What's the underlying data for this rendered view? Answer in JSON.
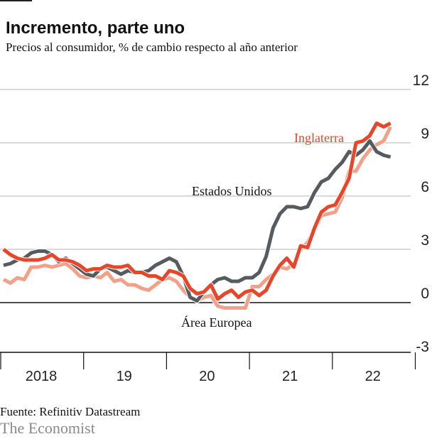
{
  "header": {
    "title": "Incremento, parte uno",
    "subtitle": "Precios al consumidor, % de cambio respecto al año anterior"
  },
  "footer": {
    "source": "Fuente: Refinitiv Datastream",
    "brand": "The Economist"
  },
  "chart_data": {
    "type": "line",
    "x_start": "2018-01",
    "x_end": "2022-09",
    "x_frequency": "monthly",
    "x_tick_labels": [
      "2018",
      "19",
      "20",
      "21",
      "22"
    ],
    "y_ticks": [
      -3,
      0,
      3,
      6,
      9,
      12
    ],
    "ylim": [
      -3,
      12
    ],
    "grid": true,
    "series": [
      {
        "name": "Estados Unidos",
        "color": "#565b60",
        "values": [
          2.1,
          2.2,
          2.4,
          2.5,
          2.8,
          2.9,
          2.9,
          2.7,
          2.3,
          2.5,
          2.2,
          1.9,
          1.6,
          1.5,
          1.9,
          2.0,
          1.8,
          1.6,
          1.8,
          1.7,
          1.7,
          1.8,
          2.1,
          2.3,
          2.5,
          2.3,
          1.5,
          0.3,
          0.1,
          0.6,
          1.0,
          1.3,
          1.4,
          1.2,
          1.2,
          1.4,
          1.4,
          1.7,
          2.6,
          4.2,
          5.0,
          5.4,
          5.4,
          5.3,
          5.4,
          6.2,
          6.8,
          7.0,
          7.5,
          7.9,
          8.5,
          8.3,
          8.6,
          9.1,
          8.5,
          8.3,
          8.2
        ]
      },
      {
        "name": "Área Europea",
        "color": "#f4a088",
        "values": [
          1.3,
          1.1,
          1.4,
          1.3,
          2.0,
          2.0,
          2.1,
          2.0,
          2.1,
          2.2,
          1.9,
          1.5,
          1.4,
          1.5,
          1.4,
          1.7,
          1.2,
          1.3,
          1.0,
          1.0,
          0.8,
          0.7,
          1.0,
          1.3,
          1.4,
          1.2,
          0.7,
          0.3,
          0.1,
          0.3,
          0.4,
          -0.2,
          -0.3,
          -0.3,
          -0.3,
          -0.3,
          0.9,
          0.9,
          1.3,
          1.6,
          2.0,
          1.9,
          2.2,
          3.0,
          3.4,
          4.1,
          4.9,
          5.0,
          5.1,
          5.9,
          7.4,
          7.4,
          8.1,
          8.6,
          8.9,
          9.1,
          9.9
        ]
      },
      {
        "name": "Inglaterra",
        "color": "#e8452a",
        "values": [
          3.0,
          2.7,
          2.5,
          2.4,
          2.4,
          2.4,
          2.5,
          2.7,
          2.4,
          2.4,
          2.3,
          2.1,
          1.8,
          1.9,
          1.9,
          2.1,
          2.0,
          2.0,
          2.1,
          1.7,
          1.7,
          1.5,
          1.5,
          1.3,
          1.8,
          1.7,
          1.5,
          0.8,
          0.5,
          0.6,
          1.0,
          0.2,
          0.5,
          0.7,
          0.3,
          0.6,
          0.7,
          0.4,
          0.7,
          1.5,
          2.1,
          2.5,
          2.0,
          3.2,
          3.1,
          4.2,
          5.1,
          5.4,
          5.5,
          6.2,
          7.0,
          9.0,
          9.1,
          9.4,
          10.1,
          9.9,
          10.1
        ]
      }
    ]
  }
}
